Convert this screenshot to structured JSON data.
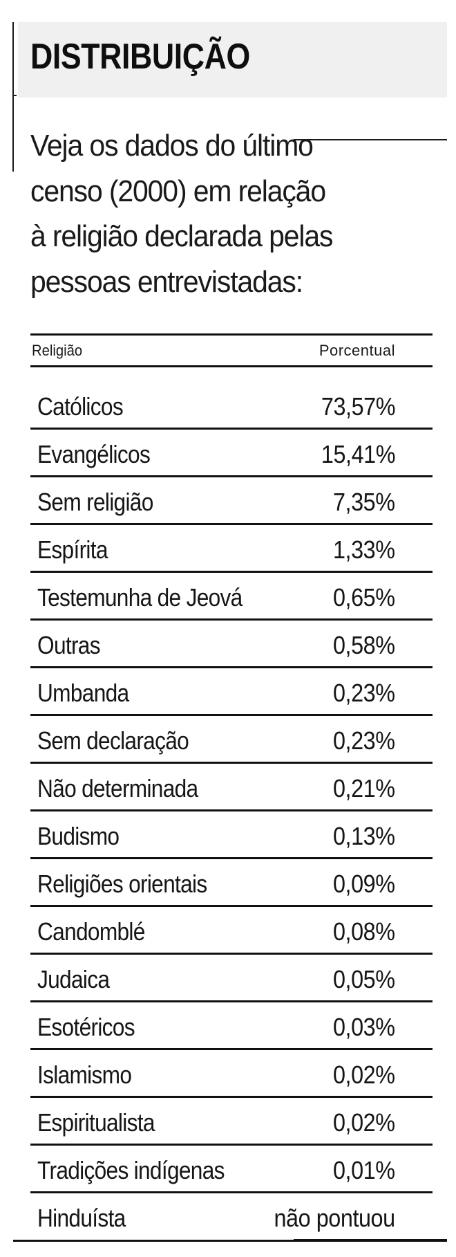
{
  "header": {
    "title": "DISTRIBUIÇÃO"
  },
  "intro": {
    "lines": [
      "Veja os dados do último",
      "censo (2000) em relação",
      "à religião declarada pelas",
      "pessoas entrevistadas:"
    ]
  },
  "table": {
    "columns": [
      "Religião",
      "Porcentual"
    ],
    "rows": [
      {
        "religion": "Católicos",
        "percent": "73,57%"
      },
      {
        "religion": "Evangélicos",
        "percent": "15,41%"
      },
      {
        "religion": "Sem religião",
        "percent": "7,35%"
      },
      {
        "religion": "Espírita",
        "percent": "1,33%"
      },
      {
        "religion": "Testemunha de Jeová",
        "percent": "0,65%"
      },
      {
        "religion": "Outras",
        "percent": "0,58%"
      },
      {
        "religion": "Umbanda",
        "percent": "0,23%"
      },
      {
        "religion": "Sem declaração",
        "percent": "0,23%"
      },
      {
        "religion": "Não determinada",
        "percent": "0,21%"
      },
      {
        "religion": "Budismo",
        "percent": "0,13%"
      },
      {
        "religion": "Religiões orientais",
        "percent": "0,09%"
      },
      {
        "religion": "Candomblé",
        "percent": "0,08%"
      },
      {
        "religion": "Judaica",
        "percent": "0,05%"
      },
      {
        "religion": "Esotéricos",
        "percent": "0,03%"
      },
      {
        "religion": "Islamismo",
        "percent": "0,02%"
      },
      {
        "religion": "Espiritualista",
        "percent": "0,02%"
      },
      {
        "religion": "Tradições indígenas",
        "percent": "0,01%"
      },
      {
        "religion": "Hinduísta",
        "percent": "não pontuou"
      }
    ]
  },
  "colors": {
    "title_background": "#f0f0f0",
    "text": "#161616",
    "rule": "#111111"
  }
}
